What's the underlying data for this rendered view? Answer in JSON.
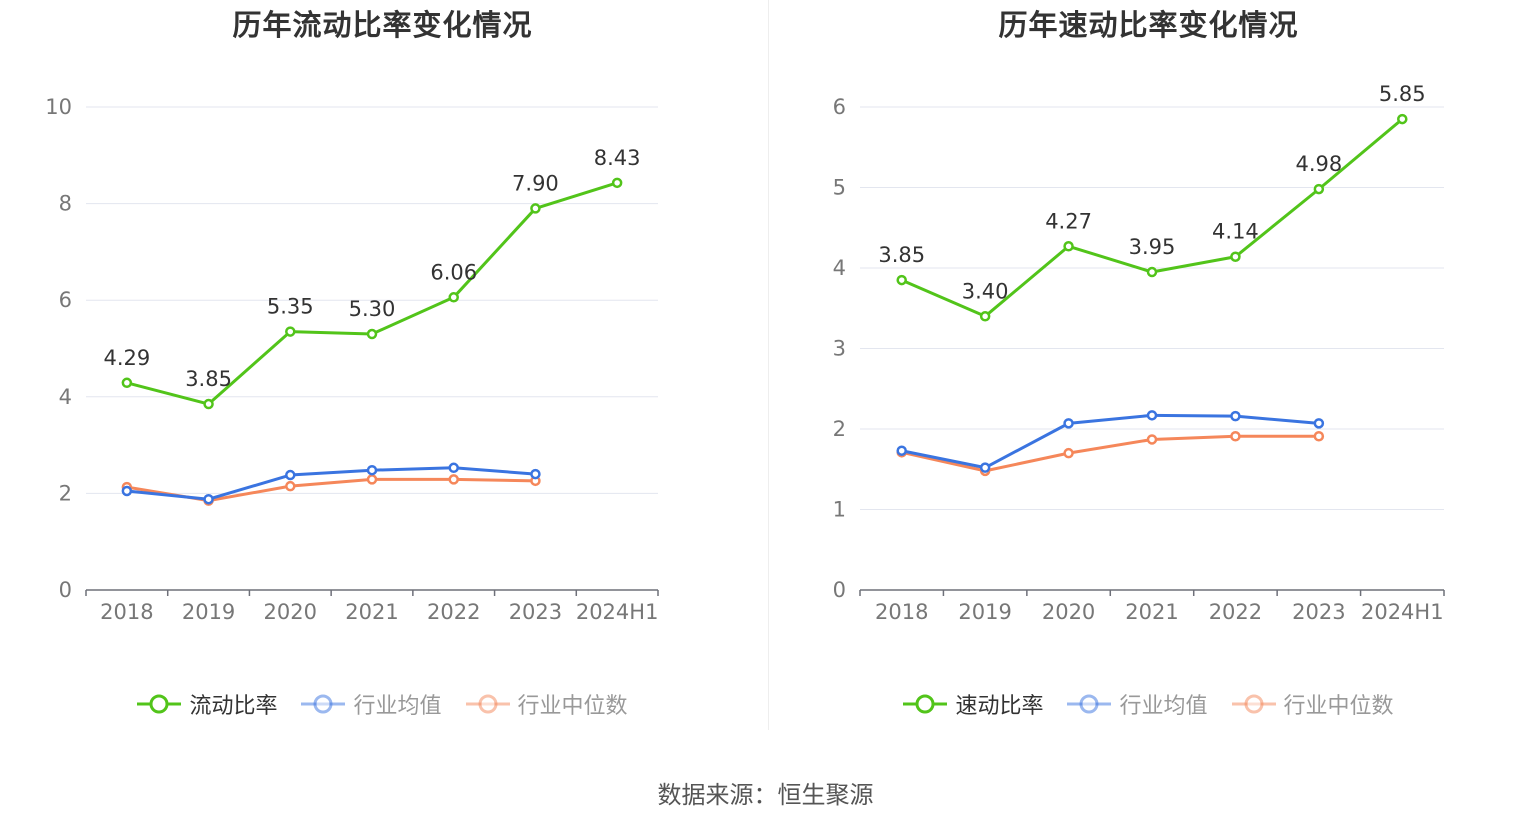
{
  "source": "数据来源：恒生聚源",
  "chart_data": [
    {
      "type": "line",
      "title": "历年流动比率变化情况",
      "categories": [
        "2018",
        "2019",
        "2020",
        "2021",
        "2022",
        "2023",
        "2024H1"
      ],
      "yticks": [
        "0",
        "2",
        "4",
        "6",
        "8",
        "10"
      ],
      "ylim": [
        0,
        10
      ],
      "grid": true,
      "legend_position": "bottom",
      "series": [
        {
          "name": "流动比率",
          "color": "#52c41a",
          "labeled": true,
          "values": [
            4.29,
            3.85,
            5.35,
            5.3,
            6.06,
            7.9,
            8.43
          ],
          "labels": [
            "4.29",
            "3.85",
            "5.35",
            "5.30",
            "6.06",
            "7.90",
            "8.43"
          ]
        },
        {
          "name": "行业均值",
          "color": "#3a74e0",
          "labeled": false,
          "values": [
            2.05,
            1.88,
            2.38,
            2.48,
            2.53,
            2.4,
            null
          ]
        },
        {
          "name": "行业中位数",
          "color": "#f5875a",
          "labeled": false,
          "values": [
            2.13,
            1.85,
            2.15,
            2.29,
            2.29,
            2.26,
            null
          ]
        }
      ]
    },
    {
      "type": "line",
      "title": "历年速动比率变化情况",
      "categories": [
        "2018",
        "2019",
        "2020",
        "2021",
        "2022",
        "2023",
        "2024H1"
      ],
      "yticks": [
        "0",
        "1",
        "2",
        "3",
        "4",
        "5",
        "6"
      ],
      "ylim": [
        0,
        6
      ],
      "grid": true,
      "legend_position": "bottom",
      "series": [
        {
          "name": "速动比率",
          "color": "#52c41a",
          "labeled": true,
          "values": [
            3.85,
            3.4,
            4.27,
            3.95,
            4.14,
            4.98,
            5.85
          ],
          "labels": [
            "3.85",
            "3.40",
            "4.27",
            "3.95",
            "4.14",
            "4.98",
            "5.85"
          ]
        },
        {
          "name": "行业均值",
          "color": "#3a74e0",
          "labeled": false,
          "values": [
            1.73,
            1.52,
            2.07,
            2.17,
            2.16,
            2.07,
            null
          ]
        },
        {
          "name": "行业中位数",
          "color": "#f5875a",
          "labeled": false,
          "values": [
            1.71,
            1.48,
            1.7,
            1.87,
            1.91,
            1.91,
            null
          ]
        }
      ]
    }
  ]
}
